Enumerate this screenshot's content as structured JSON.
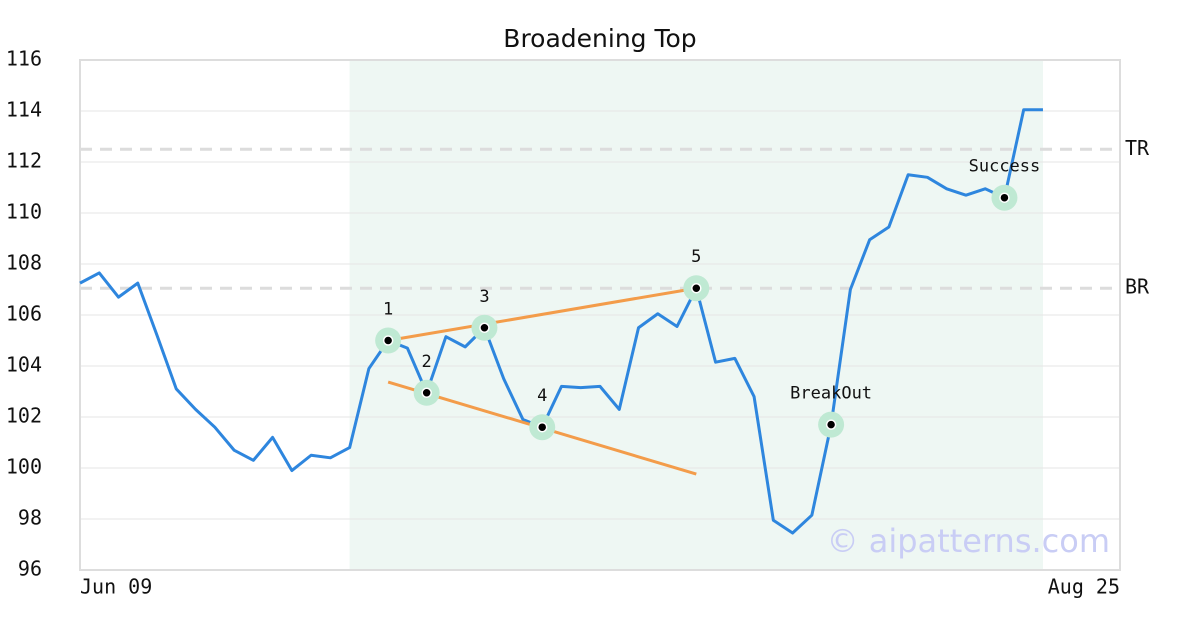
{
  "chart_data": {
    "type": "line",
    "title": "Broadening Top",
    "x": [
      0,
      1,
      2,
      3,
      4,
      5,
      6,
      7,
      8,
      9,
      10,
      11,
      12,
      13,
      14,
      15,
      16,
      17,
      18,
      19,
      20,
      21,
      22,
      23,
      24,
      25,
      26,
      27,
      28,
      29,
      30,
      31,
      32,
      33,
      34,
      35,
      36,
      37,
      38,
      39,
      40,
      41,
      42,
      43,
      44,
      45,
      46,
      47,
      48,
      49,
      50
    ],
    "values": [
      107.25,
      107.65,
      106.7,
      107.25,
      105.2,
      103.1,
      102.3,
      101.6,
      100.7,
      100.3,
      101.2,
      99.9,
      100.5,
      100.4,
      100.8,
      103.9,
      105.0,
      104.7,
      102.95,
      105.15,
      104.75,
      105.5,
      103.5,
      101.9,
      101.6,
      103.2,
      103.15,
      103.2,
      102.3,
      105.5,
      106.05,
      105.55,
      107.05,
      104.15,
      104.3,
      102.8,
      97.95,
      97.45,
      98.15,
      101.7,
      107.0,
      108.95,
      109.45,
      111.5,
      111.4,
      110.95,
      110.7,
      110.95,
      110.6,
      114.05,
      114.05
    ],
    "color": "#2e86de",
    "xlim": [
      0,
      54
    ],
    "xticks": [
      {
        "value": 0,
        "label": "Jun 09"
      },
      {
        "value": 54,
        "label": "Aug 25"
      }
    ],
    "ylim": [
      96,
      116
    ],
    "yticks": [
      96,
      98,
      100,
      102,
      104,
      106,
      108,
      110,
      112,
      114,
      116
    ],
    "grid": true,
    "shaded_region": {
      "x": [
        14,
        50
      ],
      "color": "#eef7f3"
    },
    "levels": [
      {
        "label": "TR",
        "value": 112.5
      },
      {
        "label": "BR",
        "value": 107.05
      }
    ],
    "trend_color": "#f39c4a",
    "trend_lines": [
      {
        "x": [
          16,
          32
        ],
        "y": [
          105.0,
          107.05
        ]
      },
      {
        "x": [
          16,
          32
        ],
        "y": [
          103.37,
          99.76
        ]
      }
    ],
    "pattern_points": [
      {
        "label": "1",
        "x": 16,
        "y": 105.0
      },
      {
        "label": "2",
        "x": 18,
        "y": 102.95
      },
      {
        "label": "3",
        "x": 21,
        "y": 105.5
      },
      {
        "label": "4",
        "x": 24,
        "y": 101.6
      },
      {
        "label": "5",
        "x": 32,
        "y": 107.05
      },
      {
        "label": "BreakOut",
        "x": 39,
        "y": 101.7
      },
      {
        "label": "Success",
        "x": 48,
        "y": 110.6
      }
    ],
    "watermark": "© aipatterns.com"
  }
}
